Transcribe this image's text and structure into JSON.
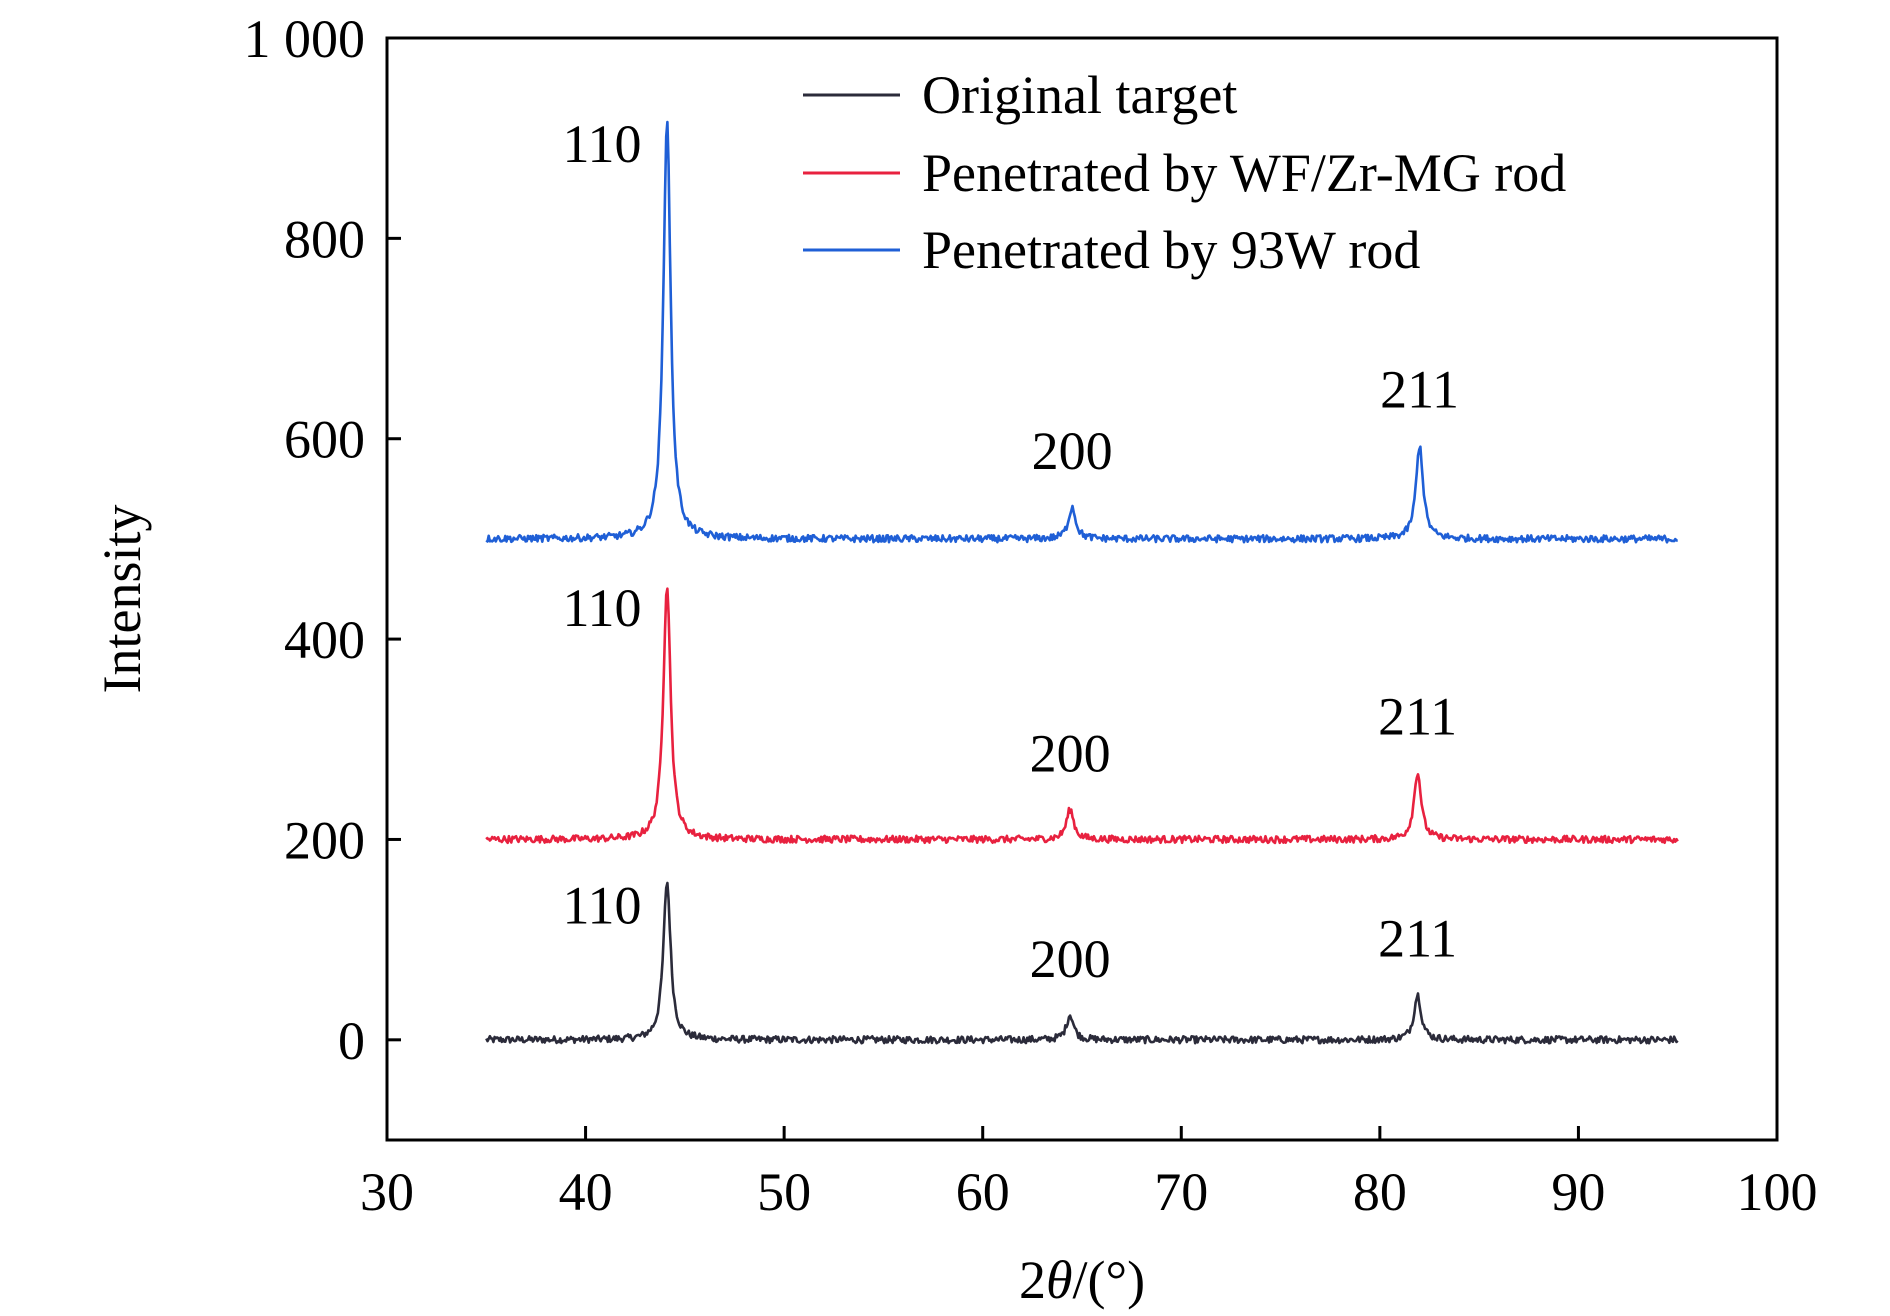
{
  "chart_data": {
    "type": "line",
    "title": "",
    "xlabel_prefix": "2",
    "xlabel_theta": "θ",
    "xlabel_suffix": "/(°)",
    "ylabel": "Intensity",
    "xlim": [
      30,
      100
    ],
    "ylim": [
      -100,
      1000
    ],
    "xticks": [
      30,
      40,
      50,
      60,
      70,
      80,
      90,
      100
    ],
    "xtick_labels": [
      "30",
      "40",
      "50",
      "60",
      "70",
      "80",
      "90",
      "100"
    ],
    "yticks": [
      0,
      200,
      400,
      600,
      800,
      1000
    ],
    "ytick_labels": [
      "0",
      "200",
      "400",
      "600",
      "800",
      "1 000"
    ],
    "grid": false,
    "legend_position": "top-right",
    "series": [
      {
        "name": "Original target",
        "color": "#2b2b3a",
        "baseline": 0,
        "x_range": [
          35,
          95
        ],
        "peaks": [
          {
            "x": 44.1,
            "y": 158,
            "label": "110"
          },
          {
            "x": 64.4,
            "y": 25,
            "label": "200"
          },
          {
            "x": 81.9,
            "y": 45,
            "label": "211"
          }
        ]
      },
      {
        "name": "Penetrated by WF/Zr-MG rod",
        "color": "#e8213f",
        "baseline": 200,
        "x_range": [
          35,
          95
        ],
        "peaks": [
          {
            "x": 44.1,
            "y": 455,
            "label": "110"
          },
          {
            "x": 64.4,
            "y": 230,
            "label": "200"
          },
          {
            "x": 81.9,
            "y": 267,
            "label": "211"
          }
        ]
      },
      {
        "name": "Penetrated by 93W rod",
        "color": "#1f5fd6",
        "baseline": 500,
        "x_range": [
          35,
          95
        ],
        "peaks": [
          {
            "x": 44.1,
            "y": 918,
            "label": "110"
          },
          {
            "x": 64.5,
            "y": 532,
            "label": "200"
          },
          {
            "x": 82.0,
            "y": 593,
            "label": "211"
          }
        ]
      }
    ]
  }
}
